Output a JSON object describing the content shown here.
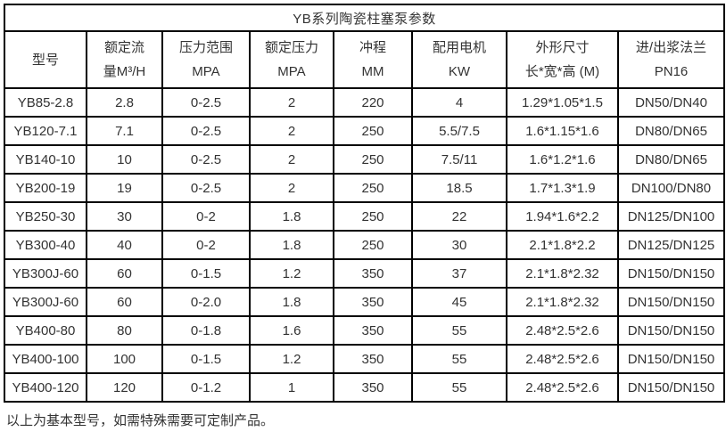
{
  "table": {
    "title": "YB系列陶瓷柱塞泵参数",
    "columns": [
      {
        "line1": "型号",
        "line2": ""
      },
      {
        "line1": "额定流",
        "line2": "量M³/H"
      },
      {
        "line1": "压力范围",
        "line2": "MPA"
      },
      {
        "line1": "额定压力",
        "line2": "MPA"
      },
      {
        "line1": "冲程",
        "line2": "MM"
      },
      {
        "line1": "配用电机",
        "line2": "KW"
      },
      {
        "line1": "外形尺寸",
        "line2": "长*宽*高 (M)"
      },
      {
        "line1": "进/出浆法兰",
        "line2": "PN16"
      }
    ],
    "rows": [
      [
        "YB85-2.8",
        "2.8",
        "0-2.5",
        "2",
        "220",
        "4",
        "1.29*1.05*1.5",
        "DN50/DN40"
      ],
      [
        "YB120-7.1",
        "7.1",
        "0-2.5",
        "2",
        "250",
        "5.5/7.5",
        "1.6*1.15*1.6",
        "DN80/DN65"
      ],
      [
        "YB140-10",
        "10",
        "0-2.5",
        "2",
        "250",
        "7.5/11",
        "1.6*1.2*1.6",
        "DN80/DN65"
      ],
      [
        "YB200-19",
        "19",
        "0-2.5",
        "2",
        "250",
        "18.5",
        "1.7*1.3*1.9",
        "DN100/DN80"
      ],
      [
        "YB250-30",
        "30",
        "0-2",
        "1.8",
        "250",
        "22",
        "1.94*1.6*2.2",
        "DN125/DN100"
      ],
      [
        "YB300-40",
        "40",
        "0-2",
        "1.8",
        "250",
        "30",
        "2.1*1.8*2.2",
        "DN125/DN125"
      ],
      [
        "YB300J-60",
        "60",
        "0-1.5",
        "1.2",
        "350",
        "37",
        "2.1*1.8*2.32",
        "DN150/DN150"
      ],
      [
        "YB300J-60",
        "60",
        "0-2.0",
        "1.8",
        "350",
        "45",
        "2.1*1.8*2.32",
        "DN150/DN150"
      ],
      [
        "YB400-80",
        "80",
        "0-1.8",
        "1.6",
        "350",
        "55",
        "2.48*2.5*2.6",
        "DN150/DN150"
      ],
      [
        "YB400-100",
        "100",
        "0-1.5",
        "1.2",
        "350",
        "55",
        "2.48*2.5*2.6",
        "DN150/DN150"
      ],
      [
        "YB400-120",
        "120",
        "0-1.2",
        "1",
        "350",
        "55",
        "2.48*2.5*2.6",
        "DN150/DN150"
      ]
    ]
  },
  "footer": {
    "note": "以上为基本型号，如需特殊需要可定制产品。"
  },
  "colors": {
    "border": "#000000",
    "text": "#333333",
    "background": "#ffffff"
  }
}
